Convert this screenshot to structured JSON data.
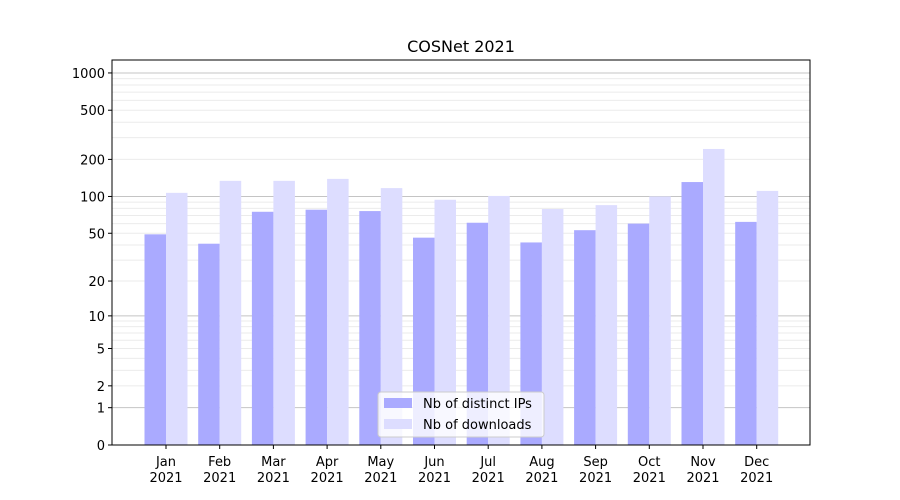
{
  "chart_data": {
    "type": "bar",
    "title": "COSNet 2021",
    "xlabel": "",
    "ylabel": "",
    "yscale": "log(1+y)",
    "ylim": [
      0,
      1300
    ],
    "categories": [
      "Jan\n2021",
      "Feb\n2021",
      "Mar\n2021",
      "Apr\n2021",
      "May\n2021",
      "Jun\n2021",
      "Jul\n2021",
      "Aug\n2021",
      "Sep\n2021",
      "Oct\n2021",
      "Nov\n2021",
      "Dec\n2021"
    ],
    "yticks": [
      0,
      1,
      2,
      5,
      10,
      20,
      50,
      100,
      200,
      500,
      1000
    ],
    "ytick_labels": [
      "0",
      "1",
      "2",
      "5",
      "10",
      "20",
      "50",
      "100",
      "200",
      "500",
      "1000"
    ],
    "grid": true,
    "legend_position": "lower-center",
    "series": [
      {
        "name": "Nb of distinct IPs",
        "color": "#aaaaff",
        "values": [
          49,
          41,
          75,
          78,
          76,
          46,
          61,
          42,
          53,
          60,
          131,
          62
        ]
      },
      {
        "name": "Nb of downloads",
        "color": "#ddddff",
        "values": [
          107,
          134,
          134,
          139,
          117,
          94,
          101,
          79,
          85,
          100,
          243,
          111
        ]
      }
    ]
  }
}
